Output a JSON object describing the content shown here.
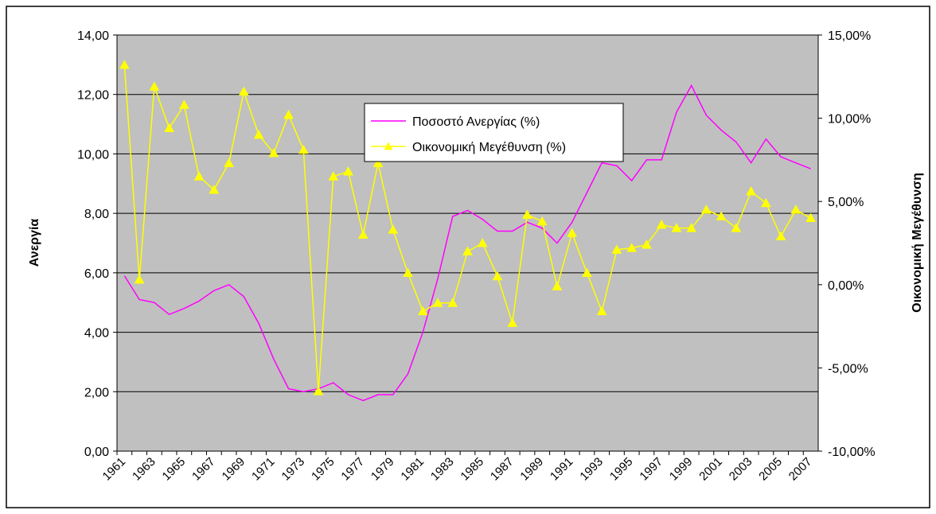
{
  "chart_data": {
    "type": "line",
    "y_label": "Ανεργία",
    "y2_label": "Οικονομική Μεγέθυνση",
    "categories": [
      "1961",
      null,
      "1963",
      null,
      "1965",
      null,
      "1967",
      null,
      "1969",
      null,
      "1971",
      null,
      "1973",
      null,
      "1975",
      null,
      "1977",
      null,
      "1979",
      null,
      "1981",
      null,
      "1983",
      null,
      "1985",
      null,
      "1987",
      null,
      "1989",
      null,
      "1991",
      null,
      "1993",
      null,
      "1995",
      null,
      "1997",
      null,
      "1999",
      null,
      "2001",
      null,
      "2003",
      null,
      "2005",
      null,
      "2007"
    ],
    "series": [
      {
        "name": "Ποσοστό Ανεργίας (%)",
        "color": "#ff00ff",
        "axis": "y",
        "values": [
          5.9,
          5.1,
          5.0,
          4.6,
          4.8,
          5.05,
          5.4,
          5.6,
          5.2,
          4.3,
          3.1,
          2.1,
          2.0,
          2.1,
          2.3,
          1.9,
          1.7,
          1.9,
          1.9,
          2.6,
          4.0,
          5.8,
          7.9,
          8.1,
          7.8,
          7.4,
          7.4,
          7.7,
          7.5,
          7.0,
          7.7,
          8.7,
          9.7,
          9.6,
          9.1,
          9.8,
          9.8,
          11.4,
          12.3,
          11.3,
          10.8,
          10.4,
          9.7,
          10.5,
          9.9,
          9.7,
          9.5
        ]
      },
      {
        "name": "Οικονομική Μεγέθυνση (%)",
        "color": "#ffff00",
        "axis": "y2",
        "marker": "triangle",
        "values": [
          13.2,
          0.3,
          11.9,
          9.4,
          10.8,
          6.5,
          5.7,
          7.3,
          11.6,
          9.0,
          7.9,
          10.2,
          8.1,
          -6.4,
          6.5,
          6.8,
          3.0,
          7.3,
          3.3,
          0.7,
          -1.6,
          -1.1,
          -1.1,
          2.0,
          2.5,
          0.5,
          -2.3,
          4.2,
          3.8,
          -0.1,
          3.1,
          0.7,
          -1.6,
          2.1,
          2.2,
          2.4,
          3.6,
          3.4,
          3.4,
          4.5,
          4.1,
          3.4,
          5.6,
          4.9,
          2.9,
          4.5,
          4.0
        ]
      }
    ],
    "ylim": [
      0,
      14
    ],
    "yticks": [
      {
        "value": 0,
        "label": "0,00"
      },
      {
        "value": 2,
        "label": "2,00"
      },
      {
        "value": 4,
        "label": "4,00"
      },
      {
        "value": 6,
        "label": "6,00"
      },
      {
        "value": 8,
        "label": "8,00"
      },
      {
        "value": 10,
        "label": "10,00"
      },
      {
        "value": 12,
        "label": "12,00"
      },
      {
        "value": 14,
        "label": "14,00"
      }
    ],
    "y2lim": [
      -10,
      15
    ],
    "y2ticks": [
      {
        "value": -10,
        "label": "-10,00%"
      },
      {
        "value": -5,
        "label": "-5,00%"
      },
      {
        "value": 0,
        "label": "0,00%"
      },
      {
        "value": 5,
        "label": "5,00%"
      },
      {
        "value": 10,
        "label": "10,00%"
      },
      {
        "value": 15,
        "label": "15,00%"
      }
    ],
    "grid": true,
    "plot_background": "#c0c0c0"
  }
}
